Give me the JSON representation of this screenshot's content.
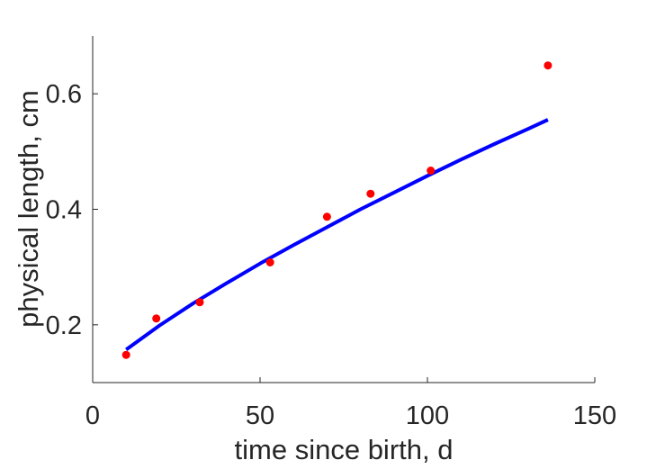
{
  "chart_data": {
    "type": "scatter",
    "xlabel": "time since birth, d",
    "ylabel": "physical length, cm",
    "xlim": [
      0,
      150
    ],
    "ylim": [
      0.1,
      0.7
    ],
    "xticks": [
      0,
      50,
      100,
      150
    ],
    "yticks": [
      0.2,
      0.4,
      0.6
    ],
    "xtick_labels": [
      "0",
      "50",
      "100",
      "150"
    ],
    "ytick_labels": [
      "0.2",
      "0.4",
      "0.6"
    ],
    "grid": false,
    "series": [
      {
        "kind": "points",
        "color": "#ff0000",
        "x": [
          10,
          19,
          32,
          53,
          70,
          83,
          101,
          136
        ],
        "y": [
          0.148,
          0.211,
          0.239,
          0.308,
          0.387,
          0.427,
          0.467,
          0.649
        ]
      },
      {
        "kind": "line",
        "color": "#0000ff",
        "x": [
          10,
          20,
          30,
          40,
          50,
          60,
          70,
          80,
          90,
          100,
          110,
          120,
          130,
          136
        ],
        "y": [
          0.157,
          0.199,
          0.237,
          0.272,
          0.306,
          0.338,
          0.369,
          0.4,
          0.429,
          0.458,
          0.486,
          0.513,
          0.539,
          0.555
        ]
      }
    ]
  }
}
